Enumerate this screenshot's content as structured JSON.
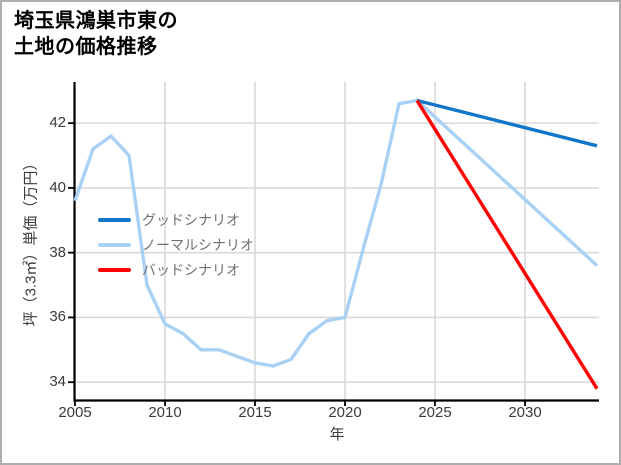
{
  "title": {
    "line1": "埼玉県鴻巣市東の",
    "line2": "土地の価格推移"
  },
  "chart_data": {
    "type": "line",
    "title": "埼玉県鴻巣市東の土地の価格推移",
    "xlabel": "年",
    "ylabel": "坪（3.3㎡）単価（万円）",
    "xlim": [
      2005,
      2034.11
    ],
    "ylim": [
      33.45,
      43.27
    ],
    "xticks": [
      2005,
      2010,
      2015,
      2020,
      2025,
      2030
    ],
    "yticks": [
      34,
      36,
      38,
      40,
      42
    ],
    "grid": true,
    "legend_position": "upper-left-inside",
    "series": [
      {
        "name": "グッドシナリオ",
        "color": "#1176c8",
        "x": [
          2024,
          2034
        ],
        "y": [
          42.7,
          41.3
        ]
      },
      {
        "name": "ノーマルシナリオ",
        "color": "#a8d1f5",
        "x": [
          2005,
          2006,
          2007,
          2008,
          2009,
          2010,
          2011,
          2012,
          2013,
          2014,
          2015,
          2016,
          2017,
          2018,
          2019,
          2020,
          2021,
          2022,
          2023,
          2024,
          2034
        ],
        "y": [
          39.6,
          41.2,
          41.6,
          41.0,
          37.0,
          35.8,
          35.5,
          35.0,
          35.0,
          34.8,
          34.6,
          34.5,
          34.7,
          35.5,
          35.9,
          36.0,
          38.1,
          40.1,
          42.6,
          42.7,
          37.6
        ]
      },
      {
        "name": "バッドシナリオ",
        "color": "#ff0000",
        "x": [
          2024,
          2034
        ],
        "y": [
          42.7,
          33.8
        ]
      }
    ]
  },
  "colors": {
    "grid": "#d9d9d9",
    "axis": "#000000",
    "tick_label": "#3b3b3b",
    "legend_text": "#707070",
    "border": "#aeaeae",
    "background": "#ffffff"
  }
}
